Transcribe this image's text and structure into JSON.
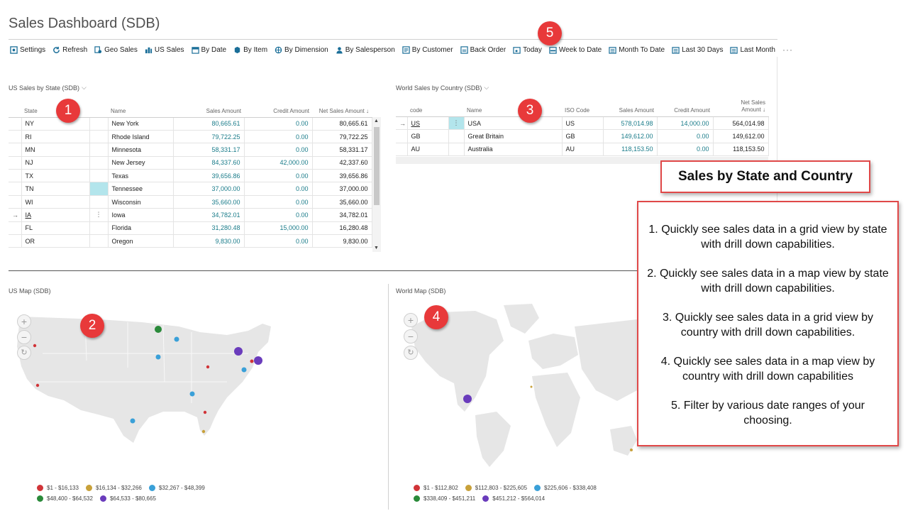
{
  "page": {
    "title": "Sales Dashboard (SDB)"
  },
  "toolbar": {
    "items": [
      {
        "label": "Settings",
        "icon": "settings-icon"
      },
      {
        "label": "Refresh",
        "icon": "refresh-icon"
      },
      {
        "label": "Geo Sales",
        "icon": "geo-sales-icon"
      },
      {
        "label": "US Sales",
        "icon": "us-sales-icon"
      },
      {
        "label": "By Date",
        "icon": "calendar-icon"
      },
      {
        "label": "By Item",
        "icon": "item-icon"
      },
      {
        "label": "By Dimension",
        "icon": "dimension-icon"
      },
      {
        "label": "By Salesperson",
        "icon": "salesperson-icon"
      },
      {
        "label": "By Customer",
        "icon": "customer-icon"
      },
      {
        "label": "Back Order",
        "icon": "back-order-icon"
      },
      {
        "label": "Today",
        "icon": "today-icon"
      },
      {
        "label": "Week to Date",
        "icon": "week-icon"
      },
      {
        "label": "Month To Date",
        "icon": "month-icon"
      },
      {
        "label": "Last 30 Days",
        "icon": "last-30-icon"
      },
      {
        "label": "Last Month",
        "icon": "last-month-icon"
      }
    ],
    "more": "···"
  },
  "us_grid": {
    "caption": "US Sales by State (SDB)",
    "chevron": "⌵",
    "headers": {
      "state": "State",
      "name": "Name",
      "sales": "Sales Amount",
      "credit": "Credit Amount",
      "net": "Net Sales Amount ↓"
    },
    "rows": [
      {
        "state": "NY",
        "name": "New York",
        "sales": "80,665.61",
        "credit": "0.00",
        "net": "80,665.61"
      },
      {
        "state": "RI",
        "name": "Rhode Island",
        "sales": "79,722.25",
        "credit": "0.00",
        "net": "79,722.25"
      },
      {
        "state": "MN",
        "name": "Minnesota",
        "sales": "58,331.17",
        "credit": "0.00",
        "net": "58,331.17"
      },
      {
        "state": "NJ",
        "name": "New Jersey",
        "sales": "84,337.60",
        "credit": "42,000.00",
        "net": "42,337.60"
      },
      {
        "state": "TX",
        "name": "Texas",
        "sales": "39,656.86",
        "credit": "0.00",
        "net": "39,656.86"
      },
      {
        "state": "TN",
        "name": "Tennessee",
        "sales": "37,000.00",
        "credit": "0.00",
        "net": "37,000.00"
      },
      {
        "state": "WI",
        "name": "Wisconsin",
        "sales": "35,660.00",
        "credit": "0.00",
        "net": "35,660.00"
      },
      {
        "state": "IA",
        "name": "Iowa",
        "sales": "34,782.01",
        "credit": "0.00",
        "net": "34,782.01"
      },
      {
        "state": "FL",
        "name": "Florida",
        "sales": "31,280.48",
        "credit": "15,000.00",
        "net": "16,280.48"
      },
      {
        "state": "OR",
        "name": "Oregon",
        "sales": "9,830.00",
        "credit": "0.00",
        "net": "9,830.00"
      }
    ],
    "current_row_arrow": "→",
    "row_menu": "⋮"
  },
  "world_grid": {
    "caption": "World Sales by Country (SDB)",
    "chevron": "⌵",
    "headers": {
      "code": "code",
      "name": "Name",
      "iso": "ISO Code",
      "sales": "Sales Amount",
      "credit": "Credit Amount",
      "net_line1": "Net Sales",
      "net_line2": "Amount ↓"
    },
    "rows": [
      {
        "code": "US",
        "name": "USA",
        "iso": "US",
        "sales": "578,014.98",
        "credit": "14,000.00",
        "net": "564,014.98"
      },
      {
        "code": "GB",
        "name": "Great Britain",
        "iso": "GB",
        "sales": "149,612.00",
        "credit": "0.00",
        "net": "149,612.00"
      },
      {
        "code": "AU",
        "name": "Australia",
        "iso": "AU",
        "sales": "118,153.50",
        "credit": "0.00",
        "net": "118,153.50"
      }
    ],
    "current_row_arrow": "→",
    "row_menu": "⋮"
  },
  "us_map": {
    "caption": "US Map (SDB)",
    "zoom_in": "+",
    "zoom_out": "−",
    "reset": "↻",
    "legend": [
      {
        "label": "$1 - $16,133",
        "color": "#d13438"
      },
      {
        "label": "$16,134 - $32,266",
        "color": "#c8a13a"
      },
      {
        "label": "$32,267 - $48,399",
        "color": "#3aa0d8"
      },
      {
        "label": "$48,400 - $64,532",
        "color": "#2a8a3a"
      },
      {
        "label": "$64,533 - $80,665",
        "color": "#6a3cbc"
      }
    ]
  },
  "world_map": {
    "caption": "World Map (SDB)",
    "zoom_in": "+",
    "zoom_out": "−",
    "reset": "↻",
    "legend": [
      {
        "label": "$1 - $112,802",
        "color": "#d13438"
      },
      {
        "label": "$112,803 - $225,605",
        "color": "#c8a13a"
      },
      {
        "label": "$225,606 - $338,408",
        "color": "#3aa0d8"
      },
      {
        "label": "$338,409 - $451,211",
        "color": "#2a8a3a"
      },
      {
        "label": "$451,212 - $564,014",
        "color": "#6a3cbc"
      }
    ]
  },
  "badges": [
    "1",
    "2",
    "3",
    "4",
    "5"
  ],
  "callout": {
    "title": "Sales by State and Country",
    "items": [
      "1. Quickly see sales data in a grid view by state with drill down capabilities.",
      "2. Quickly see sales data in a map view by state with drill down capabilities.",
      "3. Quickly see sales data in a grid view by country with drill down capabilities.",
      "4. Quickly see sales data in a map view by country with drill down capabilities",
      "5. Filter by various date ranges of your choosing."
    ]
  },
  "colors": {
    "accent_teal": "#1a7c8a",
    "badge_red": "#e8393a",
    "callout_border": "#e04848",
    "selected_cell": "#b3e5ec"
  }
}
